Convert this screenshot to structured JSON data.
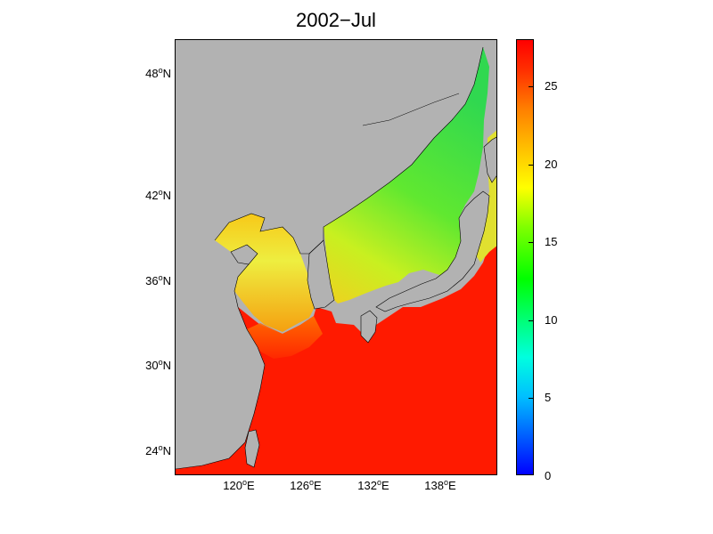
{
  "title": "2002−Jul",
  "lat_labels": [
    {
      "deg": "48",
      "hemi": "N",
      "value": 48
    },
    {
      "deg": "42",
      "hemi": "N",
      "value": 42
    },
    {
      "deg": "36",
      "hemi": "N",
      "value": 36
    },
    {
      "deg": "30",
      "hemi": "N",
      "value": 30
    },
    {
      "deg": "24",
      "hemi": "N",
      "value": 24
    }
  ],
  "lon_labels": [
    {
      "deg": "120",
      "hemi": "E",
      "value": 120
    },
    {
      "deg": "126",
      "hemi": "E",
      "value": 126
    },
    {
      "deg": "132",
      "hemi": "E",
      "value": 132
    },
    {
      "deg": "138",
      "hemi": "E",
      "value": 138
    }
  ],
  "colorbar": {
    "ticks": [
      "0",
      "5",
      "10",
      "15",
      "20",
      "25"
    ],
    "range": [
      0,
      28
    ],
    "colormap": [
      "#0000ff",
      "#00ffff",
      "#00ff00",
      "#ffff00",
      "#ff0000"
    ]
  },
  "colors": {
    "land": "#b2b2b2",
    "warm_sea": "#ff1a00",
    "yellow_sea": "#e8e62a",
    "japan_sea": "#60e830"
  },
  "extent": {
    "lon": [
      115.8,
      144.2
    ],
    "lat": [
      22.6,
      53.8
    ]
  }
}
